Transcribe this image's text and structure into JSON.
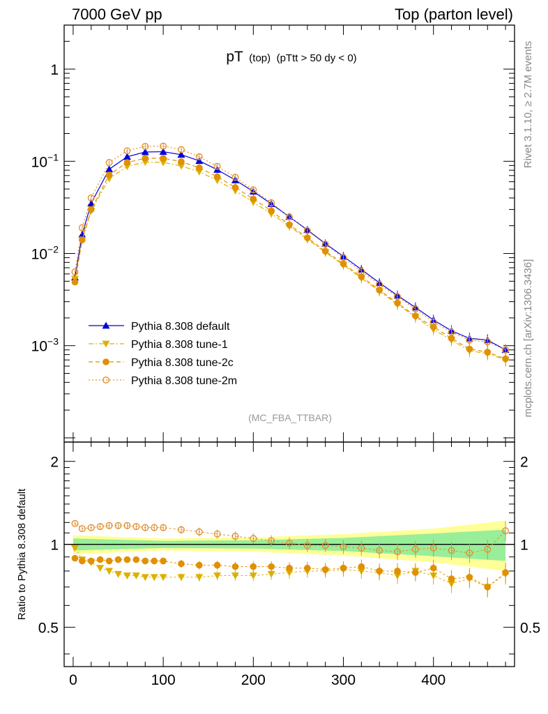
{
  "header": {
    "left": "7000 GeV pp",
    "right": "Top (parton level)"
  },
  "side": {
    "rivet": "Rivet 3.1.10, ≥ 2.7M events",
    "mcplots": "mcplots.cern.ch [arXiv:1306.3436]"
  },
  "chart_data": {
    "type": "scatter",
    "title_main": "pT",
    "title_sub1": "(top)",
    "title_sub2": "(pTtt > 50 dy < 0)",
    "analysis": "(MC_FBA_TTBAR)",
    "xlim": [
      -10,
      490
    ],
    "ylim": [
      9e-05,
      3
    ],
    "ylog": true,
    "yticks": [
      {
        "v": 1,
        "base": "1",
        "exp": ""
      },
      {
        "v": 0.1,
        "base": "10",
        "exp": "−1"
      },
      {
        "v": 0.01,
        "base": "10",
        "exp": "−2"
      },
      {
        "v": 0.001,
        "base": "10",
        "exp": "−3"
      }
    ],
    "xticks": [
      {
        "v": 0,
        "label": "0"
      },
      {
        "v": 100,
        "label": "100"
      },
      {
        "v": 200,
        "label": "200"
      },
      {
        "v": 300,
        "label": "300"
      },
      {
        "v": 400,
        "label": "400"
      }
    ],
    "legend_position": "bottom-left",
    "main_series": [
      {
        "name": "Pythia 8.308 default",
        "color": "#0000dd",
        "marker": "triangle-up",
        "line": "solid",
        "x": [
          2,
          10,
          20,
          40,
          60,
          80,
          100,
          120,
          140,
          160,
          180,
          200,
          220,
          240,
          260,
          280,
          300,
          320,
          340,
          360,
          380,
          400,
          420,
          440,
          460,
          480
        ],
        "y": [
          0.0055,
          0.016,
          0.035,
          0.082,
          0.112,
          0.126,
          0.127,
          0.118,
          0.101,
          0.081,
          0.0625,
          0.047,
          0.0345,
          0.025,
          0.018,
          0.0128,
          0.0093,
          0.0067,
          0.0048,
          0.0035,
          0.0026,
          0.0019,
          0.00145,
          0.0012,
          0.00115,
          0.0009
        ]
      },
      {
        "name": "Pythia 8.308 tune-1",
        "color": "#ddb000",
        "marker": "triangle-down",
        "line": "dashdot",
        "x": [
          2,
          10,
          20,
          40,
          60,
          80,
          100,
          120,
          140,
          160,
          180,
          200,
          220,
          240,
          260,
          280,
          300,
          320,
          340,
          360,
          380,
          400,
          420,
          440,
          460,
          480
        ],
        "y": [
          0.0053,
          0.014,
          0.029,
          0.065,
          0.088,
          0.098,
          0.097,
          0.089,
          0.077,
          0.062,
          0.048,
          0.036,
          0.027,
          0.0197,
          0.0143,
          0.0103,
          0.0075,
          0.0054,
          0.0039,
          0.0028,
          0.00205,
          0.0015,
          0.00115,
          0.00088,
          0.00082,
          0.0007
        ]
      },
      {
        "name": "Pythia 8.308 tune-2c",
        "color": "#e09000",
        "marker": "circle",
        "line": "dashed",
        "x": [
          2,
          10,
          20,
          40,
          60,
          80,
          100,
          120,
          140,
          160,
          180,
          200,
          220,
          240,
          260,
          280,
          300,
          320,
          340,
          360,
          380,
          400,
          420,
          440,
          460,
          480
        ],
        "y": [
          0.0049,
          0.014,
          0.03,
          0.071,
          0.097,
          0.108,
          0.108,
          0.099,
          0.085,
          0.068,
          0.052,
          0.039,
          0.029,
          0.0205,
          0.0148,
          0.0106,
          0.0077,
          0.0056,
          0.004,
          0.0029,
          0.0021,
          0.0016,
          0.0012,
          0.00092,
          0.00085,
          0.00072
        ]
      },
      {
        "name": "Pythia 8.308 tune-2m",
        "color": "#e09030",
        "marker": "open-circle",
        "line": "dotted",
        "x": [
          2,
          10,
          20,
          40,
          60,
          80,
          100,
          120,
          140,
          160,
          180,
          200,
          220,
          240,
          260,
          280,
          300,
          320,
          340,
          360,
          380,
          400,
          420,
          440,
          460,
          480
        ],
        "y": [
          0.0063,
          0.019,
          0.04,
          0.097,
          0.13,
          0.145,
          0.146,
          0.134,
          0.112,
          0.088,
          0.067,
          0.049,
          0.0355,
          0.025,
          0.0177,
          0.0126,
          0.009,
          0.0064,
          0.0046,
          0.0034,
          0.0025,
          0.0018,
          0.0014,
          0.00115,
          0.0011,
          0.0009
        ]
      }
    ],
    "ratio": {
      "ylabel": "Ratio to Pythia 8.308 default",
      "ylim": [
        0.36,
        2.35
      ],
      "ylog": true,
      "yticks": [
        {
          "v": 2,
          "label": "2"
        },
        {
          "v": 1,
          "label": "1"
        },
        {
          "v": 0.5,
          "label": "0.5"
        }
      ],
      "reference": 1,
      "band_green": {
        "x": [
          0,
          100,
          200,
          300,
          400,
          480
        ],
        "lo": [
          0.95,
          0.97,
          0.965,
          0.945,
          0.905,
          0.87
        ],
        "hi": [
          1.05,
          1.03,
          1.035,
          1.055,
          1.095,
          1.13
        ]
      },
      "band_yellow": {
        "x": [
          0,
          100,
          200,
          300,
          400,
          480
        ],
        "lo": [
          0.92,
          0.95,
          0.94,
          0.91,
          0.86,
          0.8
        ],
        "hi": [
          1.08,
          1.05,
          1.06,
          1.09,
          1.14,
          1.22
        ]
      },
      "series": [
        {
          "name": "Pythia 8.308 tune-1",
          "color": "#ddb000",
          "marker": "triangle-down",
          "x": [
            2,
            10,
            20,
            30,
            40,
            50,
            60,
            70,
            80,
            90,
            100,
            120,
            140,
            160,
            180,
            200,
            220,
            240,
            260,
            280,
            300,
            320,
            340,
            360,
            380,
            400,
            420,
            440,
            460,
            480
          ],
          "y": [
            0.97,
            0.88,
            0.86,
            0.82,
            0.8,
            0.78,
            0.77,
            0.77,
            0.76,
            0.76,
            0.76,
            0.76,
            0.76,
            0.77,
            0.77,
            0.77,
            0.78,
            0.79,
            0.8,
            0.8,
            0.81,
            0.8,
            0.79,
            0.77,
            0.8,
            0.77,
            0.72,
            0.75,
            0.7,
            0.78
          ]
        },
        {
          "name": "Pythia 8.308 tune-2c",
          "color": "#e09000",
          "marker": "circle",
          "x": [
            2,
            10,
            20,
            30,
            40,
            50,
            60,
            70,
            80,
            90,
            100,
            120,
            140,
            160,
            180,
            200,
            220,
            240,
            260,
            280,
            300,
            320,
            340,
            360,
            380,
            400,
            420,
            440,
            460,
            480
          ],
          "y": [
            0.89,
            0.87,
            0.87,
            0.88,
            0.87,
            0.88,
            0.88,
            0.88,
            0.87,
            0.87,
            0.87,
            0.85,
            0.84,
            0.84,
            0.83,
            0.83,
            0.83,
            0.82,
            0.82,
            0.81,
            0.82,
            0.83,
            0.8,
            0.8,
            0.79,
            0.82,
            0.75,
            0.76,
            0.7,
            0.79
          ]
        },
        {
          "name": "Pythia 8.308 tune-2m",
          "color": "#e09030",
          "marker": "open-circle",
          "x": [
            2,
            10,
            20,
            30,
            40,
            50,
            60,
            70,
            80,
            90,
            100,
            120,
            140,
            160,
            180,
            200,
            220,
            240,
            260,
            280,
            300,
            320,
            340,
            360,
            380,
            400,
            420,
            440,
            460,
            480
          ],
          "y": [
            1.19,
            1.14,
            1.15,
            1.16,
            1.17,
            1.17,
            1.17,
            1.16,
            1.15,
            1.15,
            1.15,
            1.13,
            1.11,
            1.09,
            1.07,
            1.05,
            1.03,
            1.01,
            0.99,
            0.99,
            0.98,
            0.97,
            0.95,
            0.94,
            0.96,
            0.97,
            0.95,
            0.93,
            0.96,
            1.12
          ]
        }
      ]
    }
  }
}
